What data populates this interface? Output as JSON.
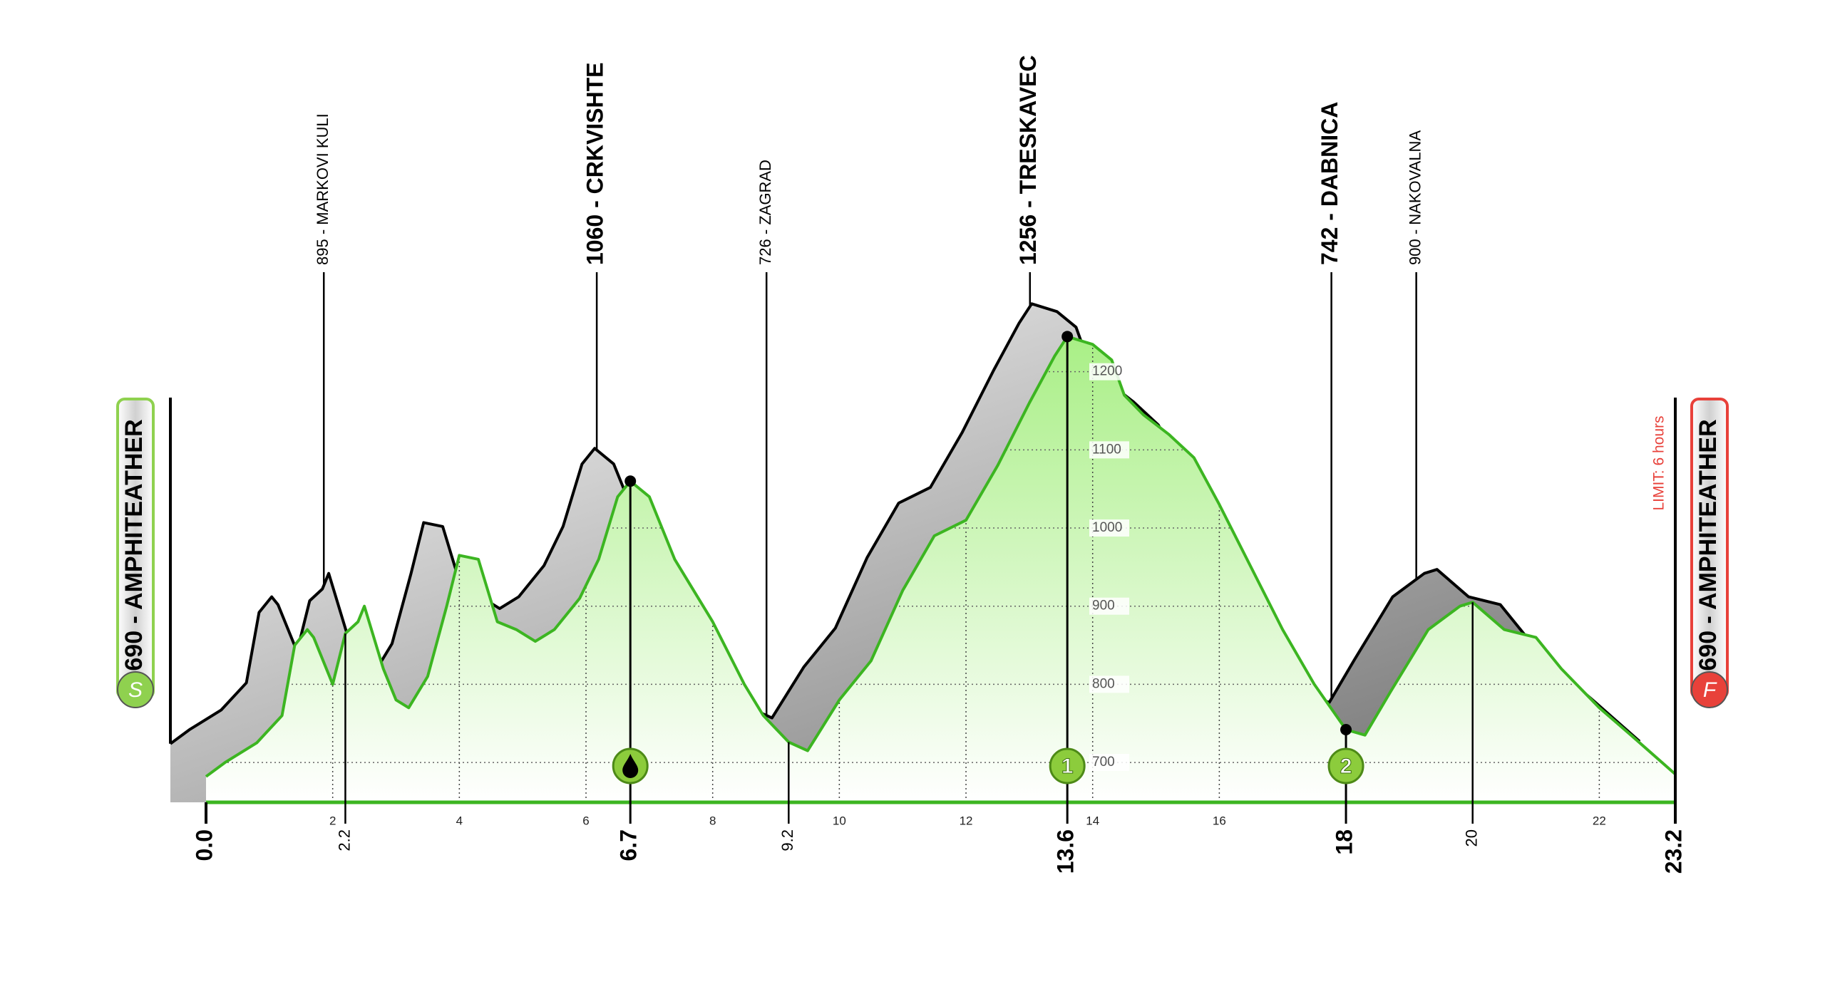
{
  "chart_data": {
    "type": "line",
    "x": [
      0,
      0.3,
      0.8,
      1.2,
      1.4,
      1.6,
      1.7,
      2.0,
      2.2,
      2.4,
      2.5,
      2.8,
      3.0,
      3.2,
      3.5,
      3.8,
      4.0,
      4.3,
      4.6,
      4.9,
      5.2,
      5.5,
      5.9,
      6.2,
      6.5,
      6.7,
      7.0,
      7.4,
      8.0,
      8.5,
      8.8,
      9.2,
      9.5,
      10.0,
      10.5,
      11.0,
      11.5,
      12.0,
      12.5,
      13.0,
      13.4,
      13.6,
      14.0,
      14.3,
      14.5,
      14.8,
      15.2,
      15.6,
      16.0,
      16.5,
      17.0,
      17.5,
      18.0,
      18.3,
      18.7,
      19.0,
      19.3,
      19.8,
      20.0,
      20.5,
      21.0,
      21.4,
      22.0,
      22.5,
      23.2
    ],
    "values": [
      682,
      700,
      725,
      760,
      850,
      870,
      860,
      800,
      865,
      880,
      900,
      820,
      780,
      770,
      810,
      900,
      965,
      960,
      880,
      870,
      855,
      870,
      910,
      960,
      1040,
      1060,
      1040,
      960,
      880,
      800,
      760,
      726,
      715,
      780,
      830,
      920,
      990,
      1010,
      1080,
      1160,
      1220,
      1245,
      1235,
      1215,
      1170,
      1145,
      1120,
      1090,
      1030,
      950,
      870,
      800,
      742,
      735,
      790,
      830,
      870,
      900,
      905,
      870,
      860,
      820,
      770,
      735,
      685
    ],
    "color": "#3cb521",
    "xlim": [
      0,
      23.2
    ],
    "ylim": [
      649,
      1300
    ],
    "xticks": [
      2,
      4,
      6,
      8,
      10,
      12,
      14,
      16,
      22
    ],
    "yticks": [
      700,
      800,
      900,
      1000,
      1100,
      1200
    ],
    "grid": true,
    "key_distances": [
      {
        "value": 0,
        "label": "0.0",
        "emphasis": true
      },
      {
        "value": 2.2,
        "emphasis": false
      },
      {
        "value": 6.7,
        "emphasis": true
      },
      {
        "value": 9.2,
        "emphasis": false
      },
      {
        "value": 13.6,
        "emphasis": true
      },
      {
        "value": 18,
        "emphasis": true
      },
      {
        "value": 20,
        "emphasis": false
      },
      {
        "value": 23.2,
        "emphasis": true
      }
    ],
    "peaks": [
      {
        "label": "895 - MARKOVI KULI",
        "x": 1.86,
        "emphasis": false
      },
      {
        "label": "1060 - CRKVISHTE",
        "x": 6.17,
        "emphasis": true
      },
      {
        "label": "726 - ZAGRAD",
        "x": 8.85,
        "emphasis": false
      },
      {
        "label": "1256 - TRESKAVEC",
        "x": 13.01,
        "emphasis": true
      },
      {
        "label": "742 - DABNICA",
        "x": 17.77,
        "emphasis": true
      },
      {
        "label": "900 - NAKOVALNA",
        "x": 19.11,
        "emphasis": false
      }
    ],
    "checkpoints": [
      {
        "x": 6.7
      },
      {
        "x": 13.6,
        "label": "1"
      },
      {
        "x": 18,
        "label": "2"
      }
    ],
    "start": {
      "label": "690 - AMPHITEATHER",
      "badge": "S",
      "color": "#8fd14f"
    },
    "finish": {
      "label": "690 - AMPHITEATHER",
      "badge": "F",
      "color": "#e8413a",
      "note": "LIMIT: 6 hours"
    }
  }
}
